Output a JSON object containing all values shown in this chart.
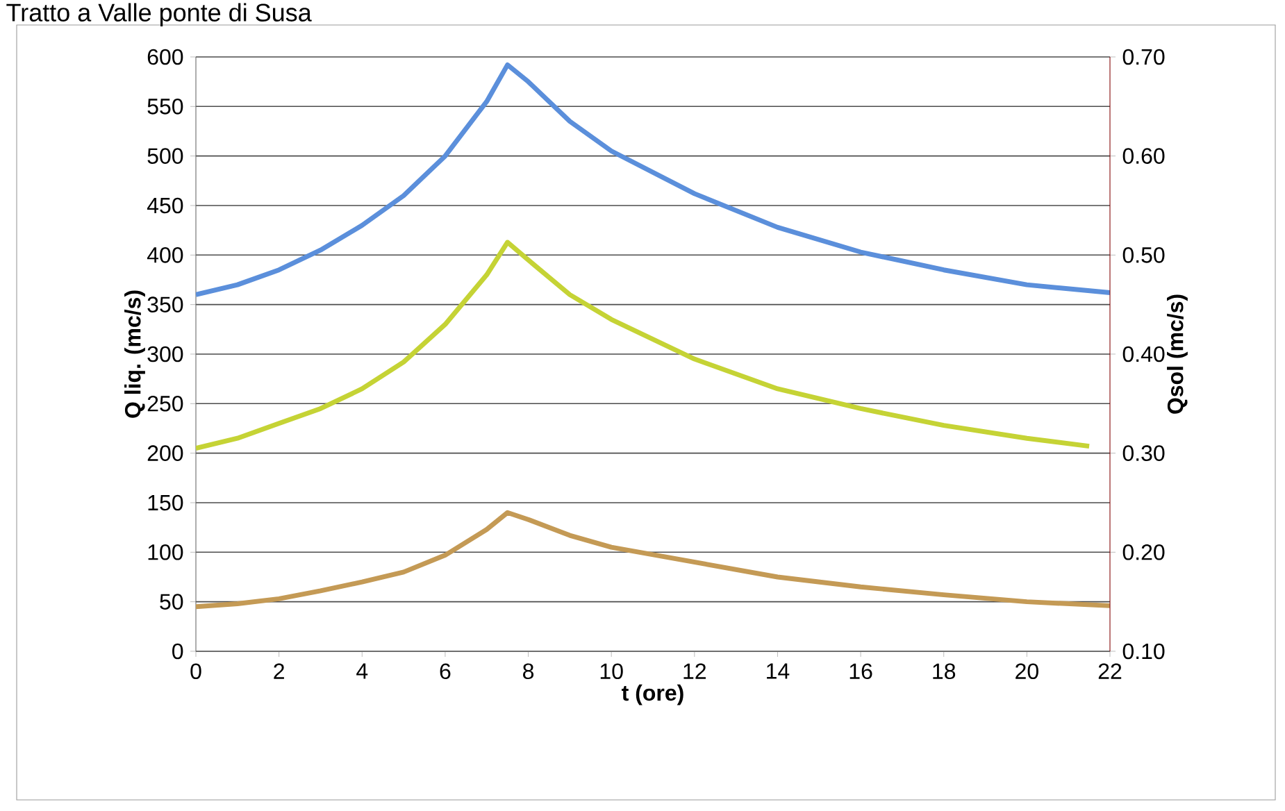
{
  "chart_data": {
    "type": "line",
    "title": "Tratto a Valle ponte di Susa",
    "xlabel": "t (ore)",
    "ylabel": "Q liq. (mc/s)",
    "y2label": "Qsol (mc/s)",
    "xlim": [
      0,
      22
    ],
    "xticks": [
      0,
      2,
      4,
      6,
      8,
      10,
      12,
      14,
      16,
      18,
      20,
      22
    ],
    "ylim": [
      0,
      600
    ],
    "yticks": [
      0,
      50,
      100,
      150,
      200,
      250,
      300,
      350,
      400,
      450,
      500,
      550,
      600
    ],
    "y2lim": [
      0.1,
      0.7
    ],
    "y2ticks": [
      {
        "value": 0.1,
        "label": "0.10"
      },
      {
        "value": 0.2,
        "label": "0.20"
      },
      {
        "value": 0.3,
        "label": "0.30"
      },
      {
        "value": 0.4,
        "label": "0.40"
      },
      {
        "value": 0.5,
        "label": "0.50"
      },
      {
        "value": 0.6,
        "label": "0.60"
      },
      {
        "value": 0.7,
        "label": "0.70"
      }
    ],
    "grid": "y",
    "marker": "none",
    "line_style": "solid",
    "series": [
      {
        "color": "#5b8fdb",
        "x": [
          0,
          1,
          2,
          3,
          4,
          5,
          6,
          7,
          7.5,
          8,
          9,
          10,
          12,
          14,
          16,
          18,
          20,
          22
        ],
        "values": [
          360,
          370,
          385,
          405,
          430,
          460,
          500,
          555,
          592,
          575,
          535,
          505,
          462,
          428,
          403,
          385,
          370,
          362
        ]
      },
      {
        "color": "#c5d335",
        "axis": "y2",
        "x": [
          0,
          1,
          2,
          3,
          4,
          5,
          6,
          7,
          7.5,
          8,
          9,
          10,
          12,
          14,
          16,
          18,
          20,
          21.5
        ],
        "values": [
          0.305,
          0.315,
          0.33,
          0.345,
          0.365,
          0.392,
          0.43,
          0.48,
          0.513,
          0.495,
          0.46,
          0.435,
          0.395,
          0.365,
          0.345,
          0.328,
          0.315,
          0.307
        ]
      },
      {
        "color": "#c49a55",
        "x": [
          0,
          1,
          2,
          3,
          4,
          5,
          6,
          7,
          7.5,
          8,
          9,
          10,
          12,
          14,
          16,
          18,
          20,
          22
        ],
        "values": [
          45,
          48,
          53,
          61,
          70,
          80,
          97,
          123,
          140,
          133,
          117,
          105,
          90,
          75,
          65,
          57,
          50,
          46
        ]
      }
    ]
  }
}
